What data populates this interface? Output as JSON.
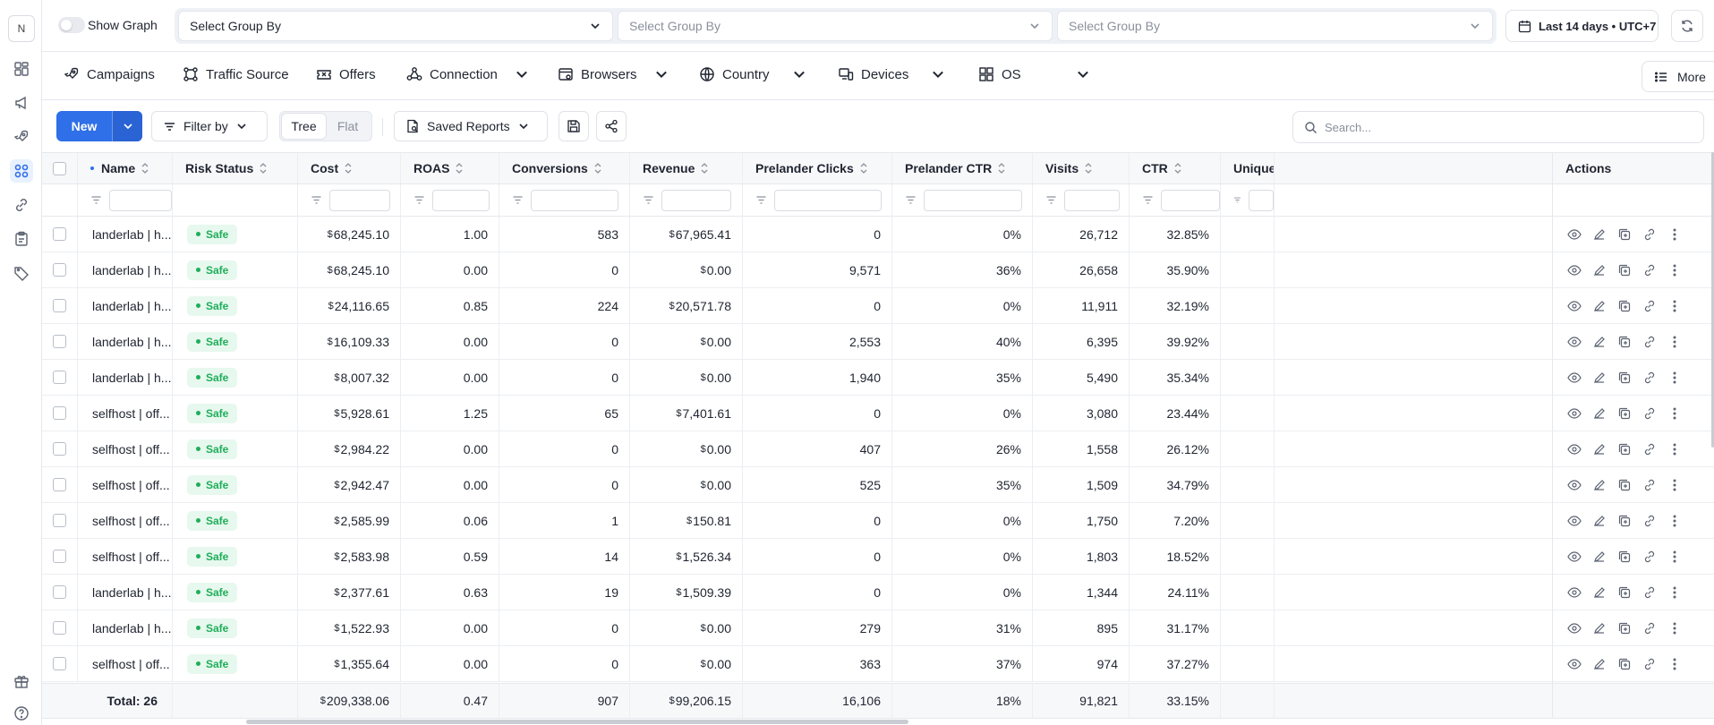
{
  "rail": {
    "avatar": "N",
    "icons": [
      "dashboard-icon",
      "megaphone-icon",
      "rocket-icon",
      "grid-apps-icon",
      "link-icon",
      "clipboard-icon",
      "tag-icon",
      "gift-icon",
      "help-icon"
    ],
    "active_index": 3
  },
  "topbar": {
    "show_graph_label": "Show Graph",
    "group_by": [
      {
        "placeholder": "Select Group By"
      },
      {
        "placeholder": "Select Group By"
      },
      {
        "placeholder": "Select Group By"
      }
    ],
    "date_range": "Last 14 days • UTC+7"
  },
  "tabs": [
    {
      "label": "Campaigns",
      "icon": "rocket-icon",
      "dropdown": false
    },
    {
      "label": "Traffic Source",
      "icon": "nodes-icon",
      "dropdown": false
    },
    {
      "label": "Offers",
      "icon": "ticket-icon",
      "dropdown": false
    },
    {
      "label": "Connection",
      "icon": "network-icon",
      "dropdown": true
    },
    {
      "label": "Browsers",
      "icon": "browser-icon",
      "dropdown": true
    },
    {
      "label": "Country",
      "icon": "globe-icon",
      "dropdown": true
    },
    {
      "label": "Devices",
      "icon": "devices-icon",
      "dropdown": true
    },
    {
      "label": "OS",
      "icon": "os-icon",
      "dropdown": true
    }
  ],
  "more_label": "More",
  "toolbar": {
    "new_label": "New",
    "filter_label": "Filter by",
    "view_tree": "Tree",
    "view_flat": "Flat",
    "saved_reports_label": "Saved Reports",
    "search_placeholder": "Search..."
  },
  "table": {
    "columns": [
      "Name",
      "Risk Status",
      "Cost",
      "ROAS",
      "Conversions",
      "Revenue",
      "Prelander Clicks",
      "Prelander CTR",
      "Visits",
      "CTR",
      "Unique V",
      "Actions"
    ],
    "currency": "$",
    "rows": [
      {
        "name": "landerlab | h...",
        "risk": "Safe",
        "cost": "68,245.10",
        "roas": "1.00",
        "conversions": "583",
        "revenue": "67,965.41",
        "pclicks": "0",
        "pctr": "0%",
        "visits": "26,712",
        "ctr": "32.85%"
      },
      {
        "name": "landerlab | h...",
        "risk": "Safe",
        "cost": "68,245.10",
        "roas": "0.00",
        "conversions": "0",
        "revenue": "0.00",
        "pclicks": "9,571",
        "pctr": "36%",
        "visits": "26,658",
        "ctr": "35.90%"
      },
      {
        "name": "landerlab | h...",
        "risk": "Safe",
        "cost": "24,116.65",
        "roas": "0.85",
        "conversions": "224",
        "revenue": "20,571.78",
        "pclicks": "0",
        "pctr": "0%",
        "visits": "11,911",
        "ctr": "32.19%"
      },
      {
        "name": "landerlab | h...",
        "risk": "Safe",
        "cost": "16,109.33",
        "roas": "0.00",
        "conversions": "0",
        "revenue": "0.00",
        "pclicks": "2,553",
        "pctr": "40%",
        "visits": "6,395",
        "ctr": "39.92%"
      },
      {
        "name": "landerlab | h...",
        "risk": "Safe",
        "cost": "8,007.32",
        "roas": "0.00",
        "conversions": "0",
        "revenue": "0.00",
        "pclicks": "1,940",
        "pctr": "35%",
        "visits": "5,490",
        "ctr": "35.34%"
      },
      {
        "name": "selfhost | off...",
        "risk": "Safe",
        "cost": "5,928.61",
        "roas": "1.25",
        "conversions": "65",
        "revenue": "7,401.61",
        "pclicks": "0",
        "pctr": "0%",
        "visits": "3,080",
        "ctr": "23.44%"
      },
      {
        "name": "selfhost | off...",
        "risk": "Safe",
        "cost": "2,984.22",
        "roas": "0.00",
        "conversions": "0",
        "revenue": "0.00",
        "pclicks": "407",
        "pctr": "26%",
        "visits": "1,558",
        "ctr": "26.12%"
      },
      {
        "name": "selfhost | off...",
        "risk": "Safe",
        "cost": "2,942.47",
        "roas": "0.00",
        "conversions": "0",
        "revenue": "0.00",
        "pclicks": "525",
        "pctr": "35%",
        "visits": "1,509",
        "ctr": "34.79%"
      },
      {
        "name": "selfhost | off...",
        "risk": "Safe",
        "cost": "2,585.99",
        "roas": "0.06",
        "conversions": "1",
        "revenue": "150.81",
        "pclicks": "0",
        "pctr": "0%",
        "visits": "1,750",
        "ctr": "7.20%"
      },
      {
        "name": "selfhost | off...",
        "risk": "Safe",
        "cost": "2,583.98",
        "roas": "0.59",
        "conversions": "14",
        "revenue": "1,526.34",
        "pclicks": "0",
        "pctr": "0%",
        "visits": "1,803",
        "ctr": "18.52%"
      },
      {
        "name": "landerlab | h...",
        "risk": "Safe",
        "cost": "2,377.61",
        "roas": "0.63",
        "conversions": "19",
        "revenue": "1,509.39",
        "pclicks": "0",
        "pctr": "0%",
        "visits": "1,344",
        "ctr": "24.11%"
      },
      {
        "name": "landerlab | h...",
        "risk": "Safe",
        "cost": "1,522.93",
        "roas": "0.00",
        "conversions": "0",
        "revenue": "0.00",
        "pclicks": "279",
        "pctr": "31%",
        "visits": "895",
        "ctr": "31.17%"
      },
      {
        "name": "selfhost | off...",
        "risk": "Safe",
        "cost": "1,355.64",
        "roas": "0.00",
        "conversions": "0",
        "revenue": "0.00",
        "pclicks": "363",
        "pctr": "37%",
        "visits": "974",
        "ctr": "37.27%"
      }
    ],
    "total": {
      "label": "Total: 26",
      "cost": "209,338.06",
      "roas": "0.47",
      "conversions": "907",
      "revenue": "99,206.15",
      "pclicks": "16,106",
      "pctr": "18%",
      "visits": "91,821",
      "ctr": "33.15%"
    },
    "row_actions": [
      "eye-icon",
      "pencil-icon",
      "copy-icon",
      "link-icon",
      "more-vertical-icon"
    ]
  },
  "colors": {
    "accent": "#2f6fe8",
    "safe": "#1fae5a",
    "safe_bg": "#e7f8ee"
  }
}
